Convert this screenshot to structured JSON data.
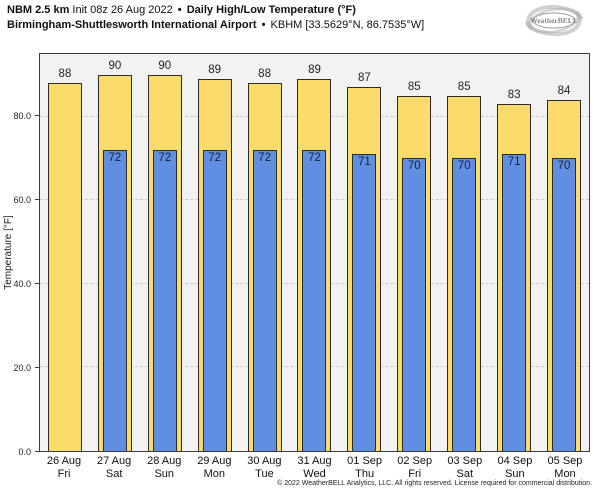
{
  "header": {
    "model": "NBM 2.5 km",
    "init": "Init 08z 26 Aug 2022",
    "sep": "•",
    "product": "Daily High/Low Temperature (°F)",
    "station_name": "Birmingham-Shuttlesworth International Airport",
    "station_coords": "KBHM [33.5629°N, 86.7535°W]",
    "logo_text": "WeatherBELL"
  },
  "chart_data": {
    "type": "bar",
    "title": "NBM 2.5 km Daily High/Low Temperature (°F) — Birmingham-Shuttlesworth International Airport (KBHM)",
    "categories": [
      "26 Aug",
      "27 Aug",
      "28 Aug",
      "29 Aug",
      "30 Aug",
      "31 Aug",
      "01 Sep",
      "02 Sep",
      "03 Sep",
      "04 Sep",
      "05 Sep"
    ],
    "weekdays": [
      "Fri",
      "Sat",
      "Sun",
      "Mon",
      "Tue",
      "Wed",
      "Thu",
      "Fri",
      "Sat",
      "Sun",
      "Mon"
    ],
    "series": [
      {
        "name": "Daily High",
        "color": "#FBDB6B",
        "border_color": "#2b2b2b",
        "values": [
          88,
          90,
          90,
          89,
          88,
          89,
          87,
          85,
          85,
          83,
          84
        ]
      },
      {
        "name": "Daily Low",
        "color": "#608EE0",
        "border_color": "#2b2b2b",
        "values": [
          null,
          72,
          72,
          72,
          72,
          72,
          71,
          70,
          70,
          71,
          70
        ]
      }
    ],
    "xlabel": "",
    "ylabel": "Temperature [°F]",
    "ylim": [
      0,
      95
    ],
    "yticks": [
      0,
      20,
      40,
      60,
      80
    ],
    "ytick_labels": [
      "0.0",
      "20.0",
      "40.0",
      "60.0",
      "80.0"
    ],
    "grid": "horizontal-dashed",
    "plot_background": "#f2f2f2",
    "legend_position": "none"
  },
  "footer": {
    "copyright": "© 2022 WeatherBELL Analytics, LLC. All rights reserved. License required for commercial distribution."
  }
}
